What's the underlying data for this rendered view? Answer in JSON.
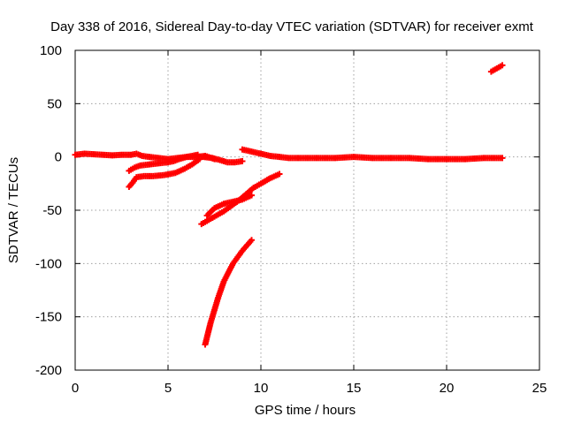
{
  "chart_data": {
    "type": "scatter",
    "title": "Day 338 of 2016, Sidereal Day-to-day VTEC variation (SDTVAR) for receiver exmt",
    "xlabel": "GPS time / hours",
    "ylabel": "SDTVAR / TECUs",
    "xlim": [
      0,
      25
    ],
    "ylim": [
      -200,
      100
    ],
    "xticks": [
      0,
      5,
      10,
      15,
      20,
      25
    ],
    "yticks": [
      -200,
      -150,
      -100,
      -50,
      0,
      50,
      100
    ],
    "grid": true,
    "marker": "plus",
    "color": "#ff0000",
    "series": [
      {
        "x": [
          0,
          0.5,
          1,
          1.5,
          2,
          2.5,
          3,
          3.3,
          3.6,
          4,
          4.5,
          5,
          5.5,
          6,
          6.5,
          7,
          7.5
        ],
        "y": [
          2,
          3,
          2.5,
          2,
          1.5,
          2,
          2,
          3,
          1,
          0,
          -1,
          -2,
          -1,
          0,
          0,
          1,
          -2
        ]
      },
      {
        "x": [
          2.9,
          3.2,
          3.5,
          4,
          4.5,
          5,
          5.3,
          5.6,
          6,
          6.3,
          6.6
        ],
        "y": [
          -13,
          -10,
          -8,
          -7,
          -6,
          -5,
          -4,
          -2,
          0,
          1,
          2
        ]
      },
      {
        "x": [
          2.9,
          3.1,
          3.3,
          3.7,
          4.2,
          4.8,
          5.4,
          5.9,
          6.3,
          6.7
        ],
        "y": [
          -28,
          -24,
          -19,
          -18,
          -18,
          -17,
          -15,
          -11,
          -7,
          -2
        ]
      },
      {
        "x": [
          6.8,
          7.2,
          7.6,
          8,
          8.4,
          8.8,
          9.2,
          9.6,
          10,
          10.5,
          11
        ],
        "y": [
          -63,
          -59,
          -55,
          -51,
          -46,
          -41,
          -35,
          -29,
          -25,
          -20,
          -16
        ]
      },
      {
        "x": [
          7.1,
          7.5,
          8,
          8.5,
          9,
          9.5
        ],
        "y": [
          -55,
          -48,
          -44,
          -42,
          -40,
          -36
        ]
      },
      {
        "x": [
          7,
          7.3,
          7.7,
          8,
          8.5,
          9,
          9.5
        ],
        "y": [
          -176,
          -155,
          -132,
          -117,
          -100,
          -88,
          -78
        ]
      },
      {
        "x": [
          6.9,
          7.4,
          7.8,
          8.2,
          8.6,
          9
        ],
        "y": [
          0,
          -1,
          -3,
          -5,
          -5,
          -4
        ]
      },
      {
        "x": [
          9,
          9.5,
          10,
          10.5,
          11,
          11.5,
          12,
          13,
          14,
          15,
          16,
          17,
          18,
          19,
          20,
          21,
          22,
          22.5,
          23
        ],
        "y": [
          7,
          5,
          3,
          1,
          0,
          -1,
          -1,
          -1,
          -1,
          0,
          -1,
          -1,
          -1,
          -2,
          -2,
          -2,
          -1,
          -1,
          -1
        ]
      },
      {
        "x": [
          22.4,
          22.6,
          22.8,
          23
        ],
        "y": [
          80,
          82,
          84,
          86
        ]
      }
    ]
  }
}
